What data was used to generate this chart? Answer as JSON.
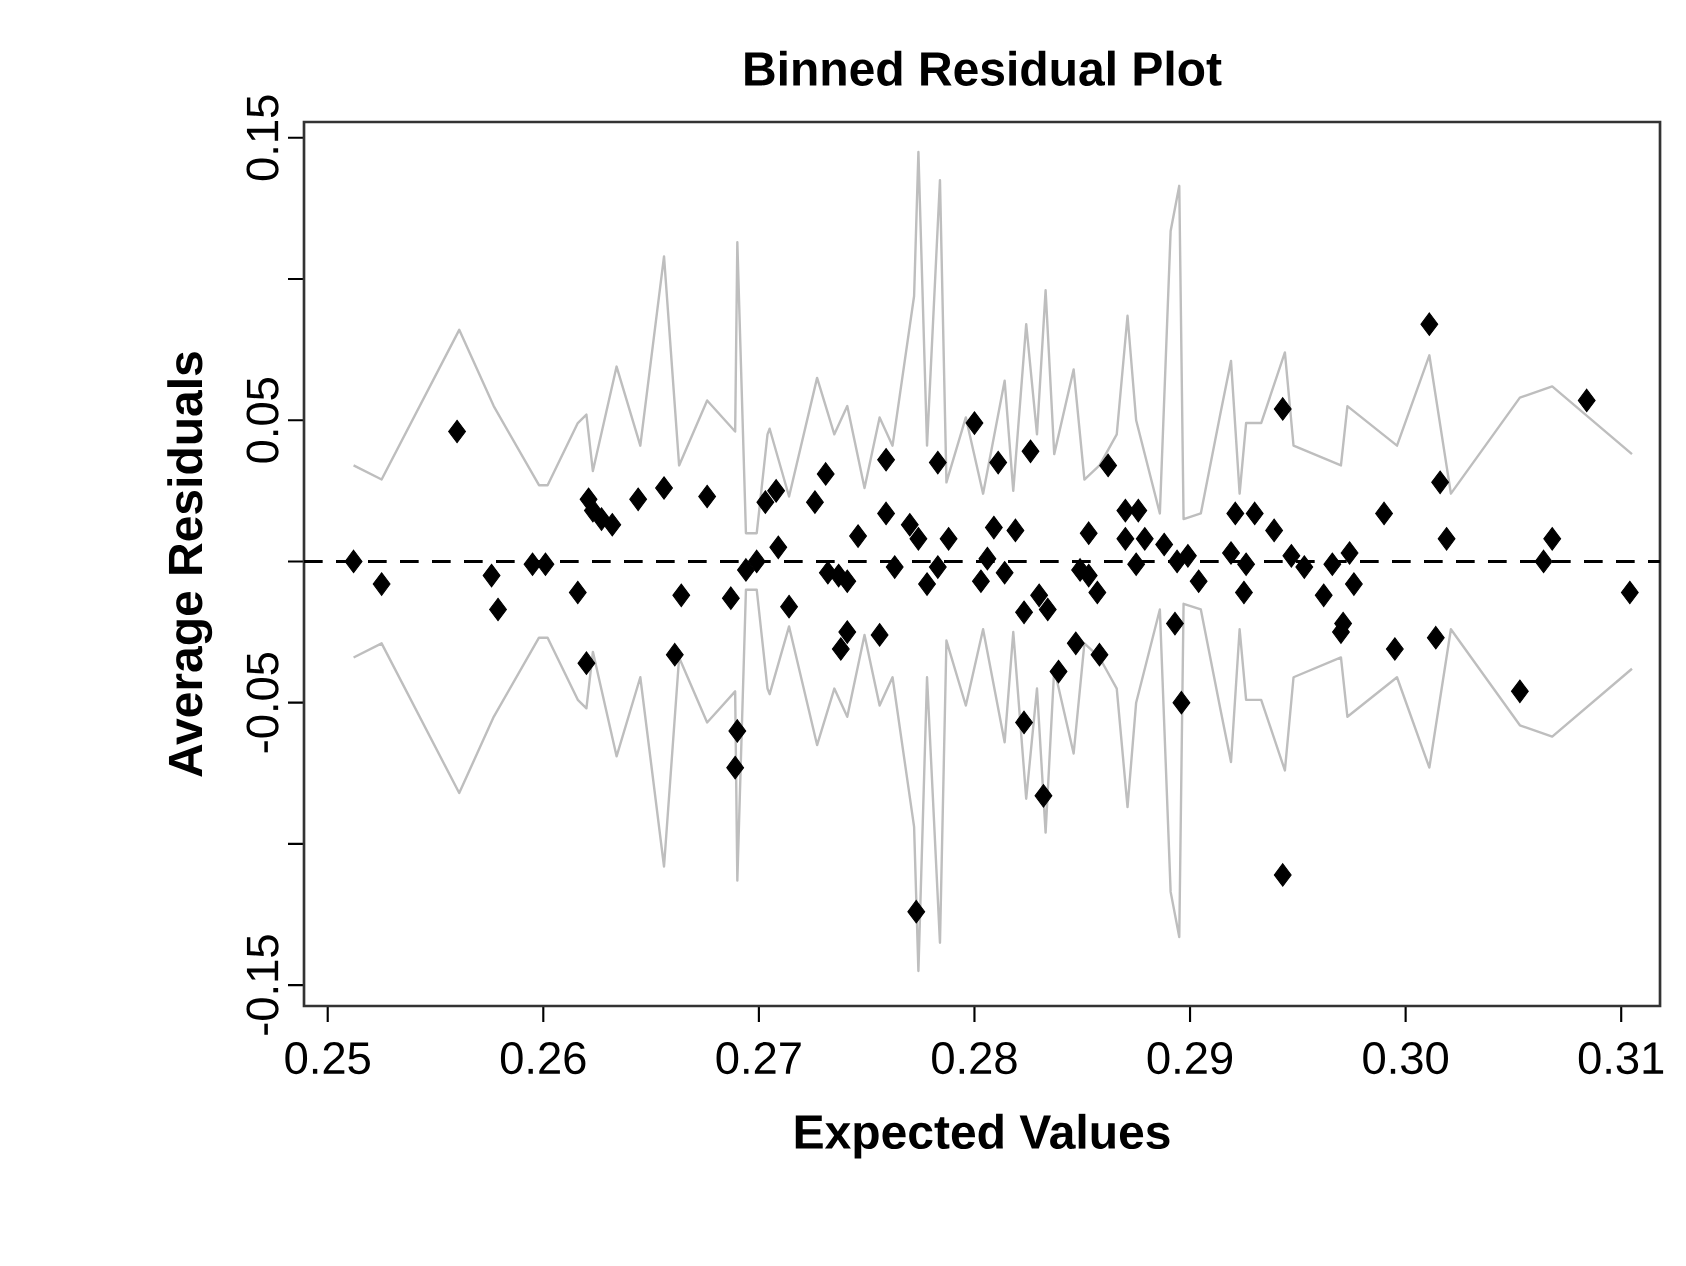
{
  "chart_data": {
    "type": "scatter",
    "title": "Binned Residual Plot",
    "xlabel": "Expected Values",
    "ylabel": "Average Residuals",
    "xlim": [
      0.2489,
      0.3118
    ],
    "ylim": [
      -0.1574,
      0.1556
    ],
    "xticks": [
      0.25,
      0.26,
      0.27,
      0.28,
      0.29,
      {
        "value": 0.3,
        "label": "0.30"
      },
      0.31
    ],
    "yticks": [
      -0.15,
      {
        "value": -0.1,
        "label": null
      },
      -0.05,
      {
        "value": 0,
        "label": null
      },
      0.05,
      {
        "value": 0.1,
        "label": null
      },
      0.15
    ],
    "ref_lines": [
      {
        "axis": "y",
        "value": 0,
        "line_style": "dashed",
        "color": "#000000"
      }
    ],
    "series": [
      {
        "type": "line",
        "color": "#bebebe",
        "line_style": "solid",
        "x": [
          0.2512,
          0.2525,
          0.2561,
          0.2577,
          0.2598,
          0.2602,
          0.2616,
          0.262,
          0.2623,
          0.2634,
          0.2645,
          0.2656,
          0.2663,
          0.2676,
          0.2689,
          0.269,
          0.2694,
          0.2699,
          0.2704,
          0.2705,
          0.2714,
          0.2727,
          0.2735,
          0.2741,
          0.2749,
          0.2756,
          0.2762,
          0.2772,
          0.2774,
          0.2778,
          0.2784,
          0.2787,
          0.2796,
          0.2804,
          0.2814,
          0.2818,
          0.2824,
          0.2829,
          0.2833,
          0.2837,
          0.2846,
          0.2851,
          0.2858,
          0.2866,
          0.2871,
          0.2875,
          0.2886,
          0.2891,
          0.2895,
          0.2897,
          0.2905,
          0.2914,
          0.2919,
          0.2923,
          0.2926,
          0.2933,
          0.2944,
          0.2948,
          0.297,
          0.2973,
          0.2996,
          0.3011,
          0.3021,
          0.3053,
          0.3068,
          0.3105
        ],
        "values": [
          0.034,
          0.029,
          0.082,
          0.055,
          0.027,
          0.027,
          0.049,
          0.052,
          0.032,
          0.069,
          0.041,
          0.108,
          0.034,
          0.057,
          0.046,
          0.113,
          0.01,
          0.01,
          0.045,
          0.047,
          0.023,
          0.065,
          0.045,
          0.055,
          0.026,
          0.051,
          0.041,
          0.094,
          0.145,
          0.041,
          0.135,
          0.028,
          0.051,
          0.024,
          0.064,
          0.025,
          0.084,
          0.045,
          0.096,
          0.038,
          0.068,
          0.029,
          0.034,
          0.045,
          0.087,
          0.05,
          0.017,
          0.117,
          0.133,
          0.015,
          0.017,
          0.052,
          0.071,
          0.024,
          0.049,
          0.049,
          0.074,
          0.041,
          0.034,
          0.055,
          0.041,
          0.073,
          0.024,
          0.058,
          0.062,
          0.038
        ]
      },
      {
        "type": "line",
        "color": "#bebebe",
        "line_style": "solid",
        "x": [
          0.2512,
          0.2525,
          0.2561,
          0.2577,
          0.2598,
          0.2602,
          0.2616,
          0.262,
          0.2623,
          0.2634,
          0.2645,
          0.2656,
          0.2663,
          0.2676,
          0.2689,
          0.269,
          0.2694,
          0.2699,
          0.2704,
          0.2705,
          0.2714,
          0.2727,
          0.2735,
          0.2741,
          0.2749,
          0.2756,
          0.2762,
          0.2772,
          0.2774,
          0.2778,
          0.2784,
          0.2787,
          0.2796,
          0.2804,
          0.2814,
          0.2818,
          0.2824,
          0.2829,
          0.2833,
          0.2837,
          0.2846,
          0.2851,
          0.2858,
          0.2866,
          0.2871,
          0.2875,
          0.2886,
          0.2891,
          0.2895,
          0.2897,
          0.2905,
          0.2914,
          0.2919,
          0.2923,
          0.2926,
          0.2933,
          0.2944,
          0.2948,
          0.297,
          0.2973,
          0.2996,
          0.3011,
          0.3021,
          0.3053,
          0.3068,
          0.3105
        ],
        "values": [
          -0.034,
          -0.029,
          -0.082,
          -0.055,
          -0.027,
          -0.027,
          -0.049,
          -0.052,
          -0.032,
          -0.069,
          -0.041,
          -0.108,
          -0.034,
          -0.057,
          -0.046,
          -0.113,
          -0.01,
          -0.01,
          -0.045,
          -0.047,
          -0.023,
          -0.065,
          -0.045,
          -0.055,
          -0.026,
          -0.051,
          -0.041,
          -0.094,
          -0.145,
          -0.041,
          -0.135,
          -0.028,
          -0.051,
          -0.024,
          -0.064,
          -0.025,
          -0.084,
          -0.045,
          -0.096,
          -0.038,
          -0.068,
          -0.029,
          -0.034,
          -0.045,
          -0.087,
          -0.05,
          -0.017,
          -0.117,
          -0.133,
          -0.015,
          -0.017,
          -0.052,
          -0.071,
          -0.024,
          -0.049,
          -0.049,
          -0.074,
          -0.041,
          -0.034,
          -0.055,
          -0.041,
          -0.073,
          -0.024,
          -0.058,
          -0.062,
          -0.038
        ]
      },
      {
        "color": "#000000",
        "marker": "diamond",
        "x": [
          0.2512,
          0.2525,
          0.256,
          0.2576,
          0.2579,
          0.2595,
          0.2601,
          0.2616,
          0.262,
          0.2621,
          0.2623,
          0.2627,
          0.2632,
          0.2644,
          0.2656,
          0.2661,
          0.2664,
          0.2676,
          0.2687,
          0.269,
          0.2689,
          0.2694,
          0.2699,
          0.2703,
          0.2708,
          0.2709,
          0.2714,
          0.2726,
          0.2731,
          0.2732,
          0.2737,
          0.2741,
          0.2738,
          0.2741,
          0.2746,
          0.2756,
          0.2759,
          0.2759,
          0.2763,
          0.277,
          0.2774,
          0.2773,
          0.2778,
          0.2783,
          0.2783,
          0.2788,
          0.28,
          0.2803,
          0.2806,
          0.2809,
          0.2811,
          0.2814,
          0.2819,
          0.2823,
          0.2823,
          0.2826,
          0.283,
          0.2834,
          0.2832,
          0.2839,
          0.2847,
          0.2849,
          0.2853,
          0.2853,
          0.2857,
          0.2858,
          0.2862,
          0.287,
          0.2876,
          0.287,
          0.2875,
          0.2879,
          0.2888,
          0.2893,
          0.2894,
          0.2896,
          0.2899,
          0.2904,
          0.2919,
          0.2921,
          0.2926,
          0.2925,
          0.293,
          0.2939,
          0.2943,
          0.2943,
          0.2947,
          0.2953,
          0.2962,
          0.2966,
          0.2971,
          0.297,
          0.2974,
          0.2976,
          0.299,
          0.2995,
          0.3011,
          0.3016,
          0.3019,
          0.3014,
          0.3053,
          0.3064,
          0.3068,
          0.3084,
          0.3104
        ],
        "values": [
          0.0,
          -0.008,
          0.046,
          -0.005,
          -0.017,
          -0.001,
          -0.001,
          -0.011,
          -0.036,
          0.022,
          0.018,
          0.015,
          0.013,
          0.022,
          0.026,
          -0.033,
          -0.012,
          0.023,
          -0.013,
          -0.06,
          -0.073,
          -0.003,
          0.0,
          0.021,
          0.025,
          0.005,
          -0.016,
          0.021,
          0.031,
          -0.004,
          -0.005,
          -0.007,
          -0.031,
          -0.025,
          0.009,
          -0.026,
          0.036,
          0.017,
          -0.002,
          0.013,
          0.008,
          -0.124,
          -0.008,
          -0.002,
          0.035,
          0.008,
          0.049,
          -0.007,
          0.001,
          0.012,
          0.035,
          -0.004,
          0.011,
          -0.018,
          -0.057,
          0.039,
          -0.012,
          -0.017,
          -0.083,
          -0.039,
          -0.029,
          -0.003,
          0.01,
          -0.005,
          -0.011,
          -0.033,
          0.034,
          0.018,
          0.018,
          0.008,
          -0.001,
          0.008,
          0.006,
          -0.022,
          0.0,
          -0.05,
          0.002,
          -0.007,
          0.003,
          0.017,
          -0.001,
          -0.011,
          0.017,
          0.011,
          0.054,
          -0.111,
          0.002,
          -0.002,
          -0.012,
          -0.001,
          -0.022,
          -0.025,
          0.003,
          -0.008,
          0.017,
          -0.031,
          0.084,
          0.028,
          0.008,
          -0.027,
          -0.046,
          0.0,
          0.008,
          0.057,
          -0.011
        ]
      }
    ]
  }
}
